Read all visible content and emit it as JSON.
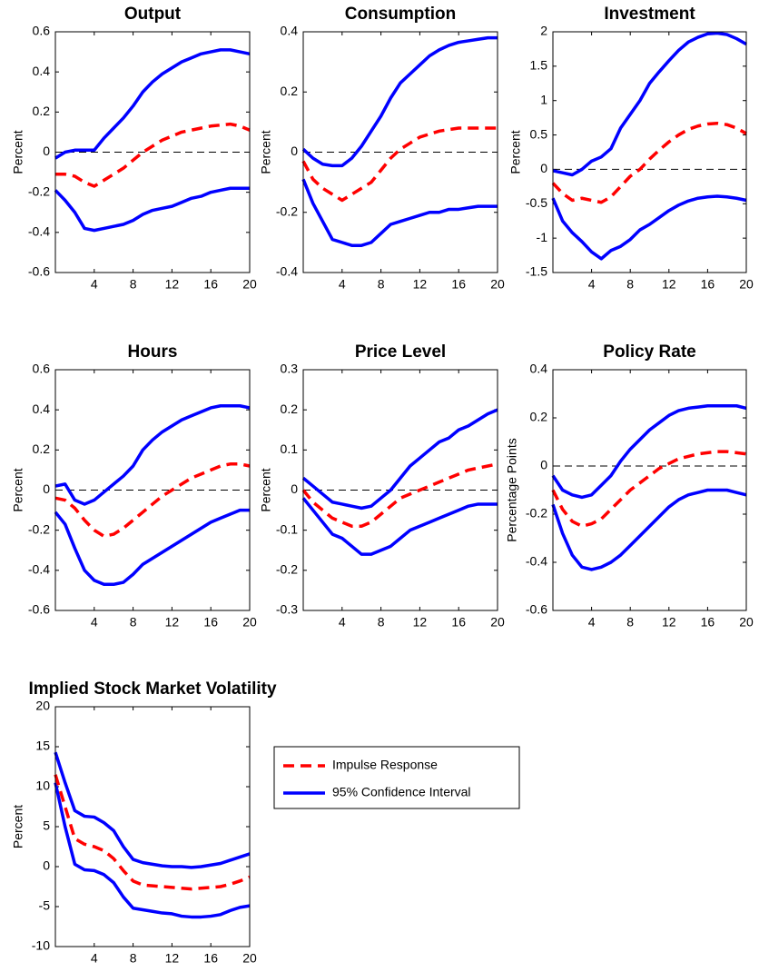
{
  "chart_data": [
    {
      "type": "line",
      "title": "Output",
      "ylabel": "Percent",
      "x": [
        0,
        1,
        2,
        3,
        4,
        5,
        6,
        7,
        8,
        9,
        10,
        11,
        12,
        13,
        14,
        15,
        16,
        17,
        18,
        19,
        20
      ],
      "xlim": [
        0,
        20
      ],
      "xticks": [
        4,
        8,
        12,
        16,
        20
      ],
      "ylim": [
        -0.6,
        0.6
      ],
      "yticks": [
        -0.6,
        -0.4,
        -0.2,
        0,
        0.2,
        0.4,
        0.6
      ],
      "zero_line": true,
      "response": [
        -0.11,
        -0.11,
        -0.12,
        -0.15,
        -0.17,
        -0.14,
        -0.11,
        -0.08,
        -0.04,
        0.0,
        0.03,
        0.06,
        0.08,
        0.1,
        0.11,
        0.12,
        0.13,
        0.135,
        0.14,
        0.13,
        0.11
      ],
      "ci_upper": [
        -0.03,
        0.0,
        0.01,
        0.01,
        0.01,
        0.07,
        0.12,
        0.17,
        0.23,
        0.3,
        0.35,
        0.39,
        0.42,
        0.45,
        0.47,
        0.49,
        0.5,
        0.51,
        0.51,
        0.5,
        0.49
      ],
      "ci_lower": [
        -0.19,
        -0.24,
        -0.3,
        -0.38,
        -0.39,
        -0.38,
        -0.37,
        -0.36,
        -0.34,
        -0.31,
        -0.29,
        -0.28,
        -0.27,
        -0.25,
        -0.23,
        -0.22,
        -0.2,
        -0.19,
        -0.18,
        -0.18,
        -0.18
      ]
    },
    {
      "type": "line",
      "title": "Consumption",
      "ylabel": "Percent",
      "x": [
        0,
        1,
        2,
        3,
        4,
        5,
        6,
        7,
        8,
        9,
        10,
        11,
        12,
        13,
        14,
        15,
        16,
        17,
        18,
        19,
        20
      ],
      "xlim": [
        0,
        20
      ],
      "xticks": [
        4,
        8,
        12,
        16,
        20
      ],
      "ylim": [
        -0.4,
        0.4
      ],
      "yticks": [
        -0.4,
        -0.2,
        0,
        0.2,
        0.4
      ],
      "zero_line": true,
      "response": [
        -0.03,
        -0.09,
        -0.12,
        -0.14,
        -0.16,
        -0.14,
        -0.12,
        -0.1,
        -0.06,
        -0.02,
        0.01,
        0.03,
        0.05,
        0.06,
        0.07,
        0.075,
        0.08,
        0.08,
        0.08,
        0.08,
        0.08
      ],
      "ci_upper": [
        0.01,
        -0.02,
        -0.04,
        -0.045,
        -0.045,
        -0.02,
        0.02,
        0.07,
        0.12,
        0.18,
        0.23,
        0.26,
        0.29,
        0.32,
        0.34,
        0.355,
        0.365,
        0.37,
        0.375,
        0.38,
        0.38
      ],
      "ci_lower": [
        -0.09,
        -0.17,
        -0.23,
        -0.29,
        -0.3,
        -0.31,
        -0.31,
        -0.3,
        -0.27,
        -0.24,
        -0.23,
        -0.22,
        -0.21,
        -0.2,
        -0.2,
        -0.19,
        -0.19,
        -0.185,
        -0.18,
        -0.18,
        -0.18
      ]
    },
    {
      "type": "line",
      "title": "Investment",
      "ylabel": "Percent",
      "x": [
        0,
        1,
        2,
        3,
        4,
        5,
        6,
        7,
        8,
        9,
        10,
        11,
        12,
        13,
        14,
        15,
        16,
        17,
        18,
        19,
        20
      ],
      "xlim": [
        0,
        20
      ],
      "xticks": [
        4,
        8,
        12,
        16,
        20
      ],
      "ylim": [
        -1.5,
        2
      ],
      "yticks": [
        -1.5,
        -1,
        -0.5,
        0,
        0.5,
        1,
        1.5,
        2
      ],
      "zero_line": true,
      "response": [
        -0.2,
        -0.35,
        -0.45,
        -0.42,
        -0.45,
        -0.48,
        -0.4,
        -0.25,
        -0.1,
        0.0,
        0.15,
        0.28,
        0.4,
        0.5,
        0.58,
        0.63,
        0.66,
        0.67,
        0.65,
        0.6,
        0.52
      ],
      "ci_upper": [
        -0.02,
        -0.05,
        -0.08,
        0.0,
        0.12,
        0.18,
        0.3,
        0.6,
        0.8,
        1.0,
        1.25,
        1.42,
        1.58,
        1.73,
        1.85,
        1.92,
        1.97,
        1.98,
        1.96,
        1.9,
        1.82
      ],
      "ci_lower": [
        -0.42,
        -0.75,
        -0.92,
        -1.05,
        -1.2,
        -1.3,
        -1.18,
        -1.12,
        -1.02,
        -0.88,
        -0.8,
        -0.7,
        -0.6,
        -0.52,
        -0.46,
        -0.42,
        -0.4,
        -0.39,
        -0.4,
        -0.42,
        -0.45
      ]
    },
    {
      "type": "line",
      "title": "Hours",
      "ylabel": "Percent",
      "x": [
        0,
        1,
        2,
        3,
        4,
        5,
        6,
        7,
        8,
        9,
        10,
        11,
        12,
        13,
        14,
        15,
        16,
        17,
        18,
        19,
        20
      ],
      "xlim": [
        0,
        20
      ],
      "xticks": [
        4,
        8,
        12,
        16,
        20
      ],
      "ylim": [
        -0.6,
        0.6
      ],
      "yticks": [
        -0.6,
        -0.4,
        -0.2,
        0,
        0.2,
        0.4,
        0.6
      ],
      "zero_line": true,
      "response": [
        -0.04,
        -0.05,
        -0.09,
        -0.15,
        -0.2,
        -0.23,
        -0.22,
        -0.19,
        -0.15,
        -0.11,
        -0.07,
        -0.03,
        0.0,
        0.03,
        0.06,
        0.08,
        0.1,
        0.12,
        0.13,
        0.13,
        0.12
      ],
      "ci_upper": [
        0.02,
        0.03,
        -0.05,
        -0.07,
        -0.05,
        -0.01,
        0.03,
        0.07,
        0.12,
        0.2,
        0.25,
        0.29,
        0.32,
        0.35,
        0.37,
        0.39,
        0.41,
        0.42,
        0.42,
        0.42,
        0.41
      ],
      "ci_lower": [
        -0.11,
        -0.17,
        -0.29,
        -0.4,
        -0.45,
        -0.47,
        -0.47,
        -0.46,
        -0.42,
        -0.37,
        -0.34,
        -0.31,
        -0.28,
        -0.25,
        -0.22,
        -0.19,
        -0.16,
        -0.14,
        -0.12,
        -0.1,
        -0.1
      ]
    },
    {
      "type": "line",
      "title": "Price Level",
      "ylabel": "Percent",
      "x": [
        0,
        1,
        2,
        3,
        4,
        5,
        6,
        7,
        8,
        9,
        10,
        11,
        12,
        13,
        14,
        15,
        16,
        17,
        18,
        19,
        20
      ],
      "xlim": [
        0,
        20
      ],
      "xticks": [
        4,
        8,
        12,
        16,
        20
      ],
      "ylim": [
        -0.3,
        0.3
      ],
      "yticks": [
        -0.3,
        -0.2,
        -0.1,
        0,
        0.1,
        0.2,
        0.3
      ],
      "zero_line": true,
      "response": [
        0.0,
        -0.03,
        -0.05,
        -0.07,
        -0.08,
        -0.09,
        -0.09,
        -0.08,
        -0.06,
        -0.04,
        -0.02,
        -0.01,
        0.0,
        0.01,
        0.02,
        0.03,
        0.04,
        0.05,
        0.055,
        0.06,
        0.065
      ],
      "ci_upper": [
        0.03,
        0.01,
        -0.01,
        -0.03,
        -0.035,
        -0.04,
        -0.045,
        -0.04,
        -0.02,
        0.0,
        0.03,
        0.06,
        0.08,
        0.1,
        0.12,
        0.13,
        0.15,
        0.16,
        0.175,
        0.19,
        0.2
      ],
      "ci_lower": [
        -0.02,
        -0.05,
        -0.08,
        -0.11,
        -0.12,
        -0.14,
        -0.16,
        -0.16,
        -0.15,
        -0.14,
        -0.12,
        -0.1,
        -0.09,
        -0.08,
        -0.07,
        -0.06,
        -0.05,
        -0.04,
        -0.035,
        -0.035,
        -0.035
      ]
    },
    {
      "type": "line",
      "title": "Policy Rate",
      "ylabel": "Percentage Points",
      "x": [
        0,
        1,
        2,
        3,
        4,
        5,
        6,
        7,
        8,
        9,
        10,
        11,
        12,
        13,
        14,
        15,
        16,
        17,
        18,
        19,
        20
      ],
      "xlim": [
        0,
        20
      ],
      "xticks": [
        4,
        8,
        12,
        16,
        20
      ],
      "ylim": [
        -0.6,
        0.4
      ],
      "yticks": [
        -0.6,
        -0.4,
        -0.2,
        0,
        0.2,
        0.4
      ],
      "zero_line": true,
      "response": [
        -0.1,
        -0.18,
        -0.23,
        -0.25,
        -0.24,
        -0.22,
        -0.18,
        -0.14,
        -0.1,
        -0.07,
        -0.04,
        -0.01,
        0.01,
        0.03,
        0.04,
        0.05,
        0.055,
        0.06,
        0.06,
        0.055,
        0.05
      ],
      "ci_upper": [
        -0.04,
        -0.1,
        -0.12,
        -0.13,
        -0.12,
        -0.08,
        -0.04,
        0.02,
        0.07,
        0.11,
        0.15,
        0.18,
        0.21,
        0.23,
        0.24,
        0.245,
        0.25,
        0.25,
        0.25,
        0.25,
        0.24
      ],
      "ci_lower": [
        -0.16,
        -0.28,
        -0.37,
        -0.42,
        -0.43,
        -0.42,
        -0.4,
        -0.37,
        -0.33,
        -0.29,
        -0.25,
        -0.21,
        -0.17,
        -0.14,
        -0.12,
        -0.11,
        -0.1,
        -0.1,
        -0.1,
        -0.11,
        -0.12
      ]
    },
    {
      "type": "line",
      "title": "Implied Stock Market Volatility",
      "ylabel": "Percent",
      "x": [
        0,
        1,
        2,
        3,
        4,
        5,
        6,
        7,
        8,
        9,
        10,
        11,
        12,
        13,
        14,
        15,
        16,
        17,
        18,
        19,
        20
      ],
      "xlim": [
        0,
        20
      ],
      "xticks": [
        4,
        8,
        12,
        16,
        20
      ],
      "ylim": [
        -10,
        20
      ],
      "yticks": [
        -10,
        -5,
        0,
        5,
        10,
        15,
        20
      ],
      "zero_line": false,
      "response": [
        11.5,
        7.5,
        3.5,
        2.8,
        2.5,
        2.0,
        1.0,
        -0.5,
        -1.8,
        -2.3,
        -2.4,
        -2.5,
        -2.6,
        -2.7,
        -2.8,
        -2.7,
        -2.6,
        -2.5,
        -2.2,
        -1.8,
        -1.3
      ],
      "ci_upper": [
        14.3,
        10.5,
        7.0,
        6.3,
        6.2,
        5.5,
        4.5,
        2.5,
        0.9,
        0.5,
        0.3,
        0.1,
        0.0,
        0.0,
        -0.1,
        0.0,
        0.2,
        0.4,
        0.8,
        1.2,
        1.6
      ],
      "ci_lower": [
        10.5,
        5.0,
        0.3,
        -0.4,
        -0.5,
        -1.0,
        -2.0,
        -3.8,
        -5.2,
        -5.4,
        -5.6,
        -5.8,
        -5.9,
        -6.2,
        -6.3,
        -6.3,
        -6.2,
        -6.0,
        -5.5,
        -5.1,
        -4.9
      ]
    }
  ],
  "legend": {
    "entries": [
      {
        "name": "Impulse Response",
        "color": "#ff0000",
        "dashed": true
      },
      {
        "name": "95% Confidence Interval",
        "color": "#0000ff",
        "dashed": false
      }
    ]
  }
}
